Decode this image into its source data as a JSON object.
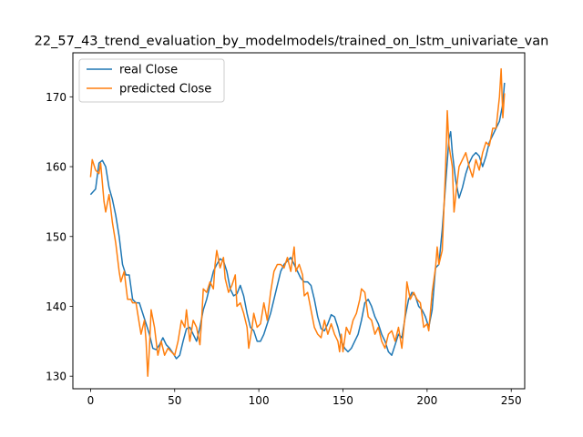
{
  "chart_data": {
    "type": "line",
    "title": "22_57_43_trend_evaluation_by_modelmodels/trained_on_lstm_univariate_van",
    "xlabel": "",
    "ylabel": "",
    "xlim": [
      -10.5,
      258
    ],
    "ylim": [
      128.2,
      176.3
    ],
    "x_ticks": [
      0,
      50,
      100,
      150,
      200,
      250
    ],
    "y_ticks": [
      130,
      140,
      150,
      160,
      170
    ],
    "grid": false,
    "legend_position": "top-left",
    "series": [
      {
        "name": "real Close",
        "color": "#1f77b4",
        "points": [
          [
            0,
            156
          ],
          [
            3,
            156.8
          ],
          [
            5,
            160.5
          ],
          [
            7,
            160.9
          ],
          [
            9,
            160
          ],
          [
            11,
            157
          ],
          [
            13,
            155.3
          ],
          [
            15,
            153
          ],
          [
            17,
            150
          ],
          [
            19,
            146
          ],
          [
            21,
            144.5
          ],
          [
            23,
            144.5
          ],
          [
            25,
            141
          ],
          [
            27,
            140.5
          ],
          [
            29,
            140.5
          ],
          [
            31,
            139
          ],
          [
            33,
            137.5
          ],
          [
            35,
            136
          ],
          [
            37,
            134
          ],
          [
            39,
            133.8
          ],
          [
            41,
            134.5
          ],
          [
            43,
            135.5
          ],
          [
            45,
            134.5
          ],
          [
            47,
            134
          ],
          [
            49,
            133.3
          ],
          [
            51,
            132.5
          ],
          [
            53,
            133
          ],
          [
            55,
            135
          ],
          [
            57,
            136.8
          ],
          [
            59,
            137
          ],
          [
            61,
            136
          ],
          [
            63,
            135
          ],
          [
            65,
            137
          ],
          [
            67,
            139.5
          ],
          [
            69,
            141
          ],
          [
            71,
            143
          ],
          [
            73,
            145
          ],
          [
            75,
            146
          ],
          [
            77,
            146.8
          ],
          [
            79,
            146.5
          ],
          [
            81,
            145
          ],
          [
            83,
            142.5
          ],
          [
            85,
            141.5
          ],
          [
            87,
            141.8
          ],
          [
            89,
            143
          ],
          [
            91,
            141.5
          ],
          [
            93,
            139
          ],
          [
            95,
            137
          ],
          [
            97,
            136.5
          ],
          [
            99,
            135
          ],
          [
            101,
            135
          ],
          [
            103,
            136
          ],
          [
            105,
            137.5
          ],
          [
            107,
            139
          ],
          [
            109,
            141
          ],
          [
            111,
            143
          ],
          [
            113,
            145
          ],
          [
            115,
            146
          ],
          [
            117,
            146.5
          ],
          [
            119,
            147
          ],
          [
            121,
            146
          ],
          [
            123,
            145
          ],
          [
            125,
            144
          ],
          [
            127,
            143.5
          ],
          [
            129,
            143.5
          ],
          [
            131,
            143
          ],
          [
            133,
            141
          ],
          [
            135,
            138.5
          ],
          [
            137,
            136.8
          ],
          [
            139,
            136.5
          ],
          [
            141,
            137.5
          ],
          [
            143,
            138.8
          ],
          [
            145,
            138.5
          ],
          [
            147,
            137
          ],
          [
            149,
            135
          ],
          [
            151,
            134
          ],
          [
            153,
            133.5
          ],
          [
            155,
            134
          ],
          [
            157,
            135
          ],
          [
            159,
            136
          ],
          [
            161,
            138
          ],
          [
            163,
            140.5
          ],
          [
            165,
            141
          ],
          [
            167,
            140
          ],
          [
            169,
            138.5
          ],
          [
            171,
            137.5
          ],
          [
            173,
            136
          ],
          [
            175,
            135
          ],
          [
            177,
            133.5
          ],
          [
            179,
            133
          ],
          [
            181,
            134.5
          ],
          [
            183,
            136
          ],
          [
            185,
            135.5
          ],
          [
            187,
            138.5
          ],
          [
            189,
            141
          ],
          [
            191,
            142
          ],
          [
            193,
            141.5
          ],
          [
            195,
            140
          ],
          [
            197,
            139.5
          ],
          [
            199,
            138.5
          ],
          [
            201,
            137
          ],
          [
            203,
            139.5
          ],
          [
            205,
            145.5
          ],
          [
            207,
            146
          ],
          [
            209,
            151
          ],
          [
            211,
            157.5
          ],
          [
            213,
            164
          ],
          [
            214,
            165
          ],
          [
            215,
            162
          ],
          [
            217,
            158
          ],
          [
            219,
            155.5
          ],
          [
            221,
            157
          ],
          [
            223,
            159
          ],
          [
            225,
            160.5
          ],
          [
            227,
            161.5
          ],
          [
            229,
            162
          ],
          [
            231,
            161.5
          ],
          [
            233,
            160
          ],
          [
            235,
            161.5
          ],
          [
            237,
            163.5
          ],
          [
            239,
            164.5
          ],
          [
            241,
            165.5
          ],
          [
            243,
            166.5
          ],
          [
            245,
            169
          ],
          [
            246,
            172
          ]
        ]
      },
      {
        "name": "predicted Close",
        "color": "#ff7f0e",
        "points": [
          [
            0,
            158.5
          ],
          [
            1,
            161
          ],
          [
            3,
            159.5
          ],
          [
            5,
            159
          ],
          [
            6,
            160.5
          ],
          [
            8,
            155
          ],
          [
            9,
            153.5
          ],
          [
            11,
            156
          ],
          [
            13,
            152
          ],
          [
            15,
            149
          ],
          [
            17,
            145
          ],
          [
            18,
            143.5
          ],
          [
            20,
            145
          ],
          [
            22,
            141
          ],
          [
            24,
            141
          ],
          [
            25,
            140.5
          ],
          [
            27,
            140.5
          ],
          [
            29,
            137.5
          ],
          [
            30,
            136
          ],
          [
            32,
            138
          ],
          [
            33,
            135
          ],
          [
            34,
            130
          ],
          [
            35,
            134
          ],
          [
            36,
            139.5
          ],
          [
            38,
            137
          ],
          [
            40,
            133
          ],
          [
            42,
            135
          ],
          [
            44,
            133
          ],
          [
            46,
            134
          ],
          [
            48,
            133.5
          ],
          [
            50,
            133
          ],
          [
            52,
            135
          ],
          [
            54,
            138
          ],
          [
            56,
            137
          ],
          [
            57,
            139.5
          ],
          [
            59,
            135
          ],
          [
            61,
            138
          ],
          [
            63,
            137
          ],
          [
            65,
            134.5
          ],
          [
            66,
            138
          ],
          [
            67,
            142.5
          ],
          [
            69,
            142
          ],
          [
            71,
            143.5
          ],
          [
            73,
            142.5
          ],
          [
            74,
            146
          ],
          [
            75,
            148
          ],
          [
            77,
            145.5
          ],
          [
            79,
            147
          ],
          [
            80,
            144
          ],
          [
            82,
            142
          ],
          [
            84,
            143
          ],
          [
            86,
            144.5
          ],
          [
            87,
            140
          ],
          [
            89,
            140.5
          ],
          [
            91,
            139
          ],
          [
            93,
            137
          ],
          [
            94,
            134
          ],
          [
            96,
            137
          ],
          [
            97,
            139
          ],
          [
            99,
            137
          ],
          [
            101,
            137.5
          ],
          [
            103,
            140.5
          ],
          [
            105,
            138
          ],
          [
            107,
            142
          ],
          [
            109,
            145
          ],
          [
            111,
            146
          ],
          [
            113,
            146
          ],
          [
            115,
            145.5
          ],
          [
            117,
            147
          ],
          [
            119,
            145
          ],
          [
            121,
            148.5
          ],
          [
            122,
            145
          ],
          [
            124,
            146
          ],
          [
            126,
            144.5
          ],
          [
            127,
            141.5
          ],
          [
            129,
            142
          ],
          [
            131,
            139.5
          ],
          [
            133,
            137
          ],
          [
            135,
            136
          ],
          [
            137,
            135.5
          ],
          [
            139,
            138
          ],
          [
            141,
            136
          ],
          [
            143,
            137.5
          ],
          [
            145,
            136
          ],
          [
            147,
            135
          ],
          [
            148,
            133.5
          ],
          [
            149,
            136
          ],
          [
            150,
            133.5
          ],
          [
            152,
            137
          ],
          [
            154,
            136
          ],
          [
            156,
            138
          ],
          [
            158,
            139
          ],
          [
            160,
            141
          ],
          [
            161,
            142.5
          ],
          [
            163,
            142
          ],
          [
            165,
            138.5
          ],
          [
            167,
            138
          ],
          [
            169,
            136
          ],
          [
            171,
            137
          ],
          [
            173,
            135
          ],
          [
            175,
            134
          ],
          [
            177,
            136
          ],
          [
            179,
            136.5
          ],
          [
            181,
            135
          ],
          [
            183,
            137
          ],
          [
            185,
            134
          ],
          [
            187,
            139
          ],
          [
            188,
            143.5
          ],
          [
            190,
            141
          ],
          [
            192,
            142
          ],
          [
            194,
            141
          ],
          [
            196,
            140.5
          ],
          [
            198,
            137
          ],
          [
            200,
            137.5
          ],
          [
            201,
            136.5
          ],
          [
            203,
            142
          ],
          [
            205,
            145.5
          ],
          [
            206,
            148.5
          ],
          [
            207,
            146
          ],
          [
            209,
            148
          ],
          [
            211,
            160
          ],
          [
            212,
            168
          ],
          [
            213,
            163
          ],
          [
            215,
            160
          ],
          [
            216,
            153.5
          ],
          [
            218,
            158
          ],
          [
            219,
            160
          ],
          [
            221,
            161
          ],
          [
            223,
            162
          ],
          [
            225,
            160
          ],
          [
            227,
            158.5
          ],
          [
            229,
            161
          ],
          [
            231,
            159.5
          ],
          [
            233,
            162
          ],
          [
            235,
            163.5
          ],
          [
            237,
            163
          ],
          [
            239,
            165.5
          ],
          [
            241,
            165.5
          ],
          [
            243,
            170
          ],
          [
            244,
            174
          ],
          [
            245,
            167
          ],
          [
            246,
            170.5
          ]
        ]
      }
    ]
  }
}
